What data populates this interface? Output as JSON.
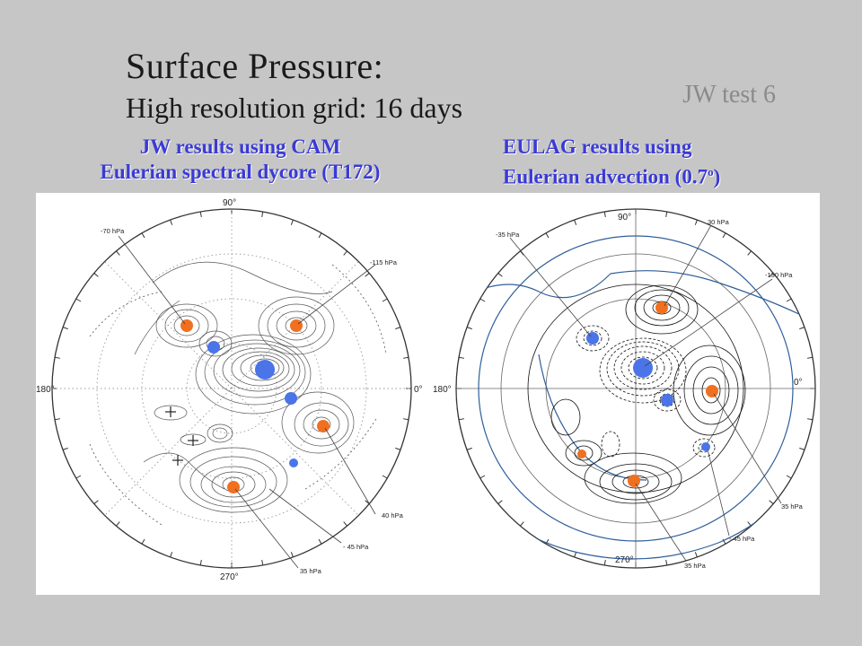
{
  "header": {
    "title": "Surface Pressure:",
    "subtitle": "High resolution grid: 16 days",
    "test_tag": "JW test 6"
  },
  "captions": {
    "left_line1": "JW results using CAM",
    "left_line2": "Eulerian spectral dycore (T172)",
    "right_line1": "EULAG results using",
    "right_line2_text": "Eulerian advection (0.7",
    "right_line2_sup": "o",
    "right_line2_end": ")"
  },
  "left_plot": {
    "axis_labels": {
      "top": "90°",
      "left": "180°",
      "right": "0°",
      "bottom": "270°"
    },
    "annotations": [
      "-70 hPa",
      "-115 hPa",
      "40 hPa",
      "- 45 hPa",
      "35 hPa"
    ]
  },
  "right_plot": {
    "axis_labels": {
      "top": "90°",
      "left": "180°",
      "right": "0°",
      "bottom": "270°"
    },
    "annotations": [
      "-35 hPa",
      "30 hPa",
      "-130 hPa",
      "35 hPa",
      "- 45 hPa",
      "35 hPa"
    ]
  },
  "colors": {
    "background": "#c6c6c6",
    "caption": "#3a3ad6",
    "high_marker": "#f07020",
    "low_marker": "#4a74e8",
    "eulag_outline": "#2f5f9a"
  }
}
